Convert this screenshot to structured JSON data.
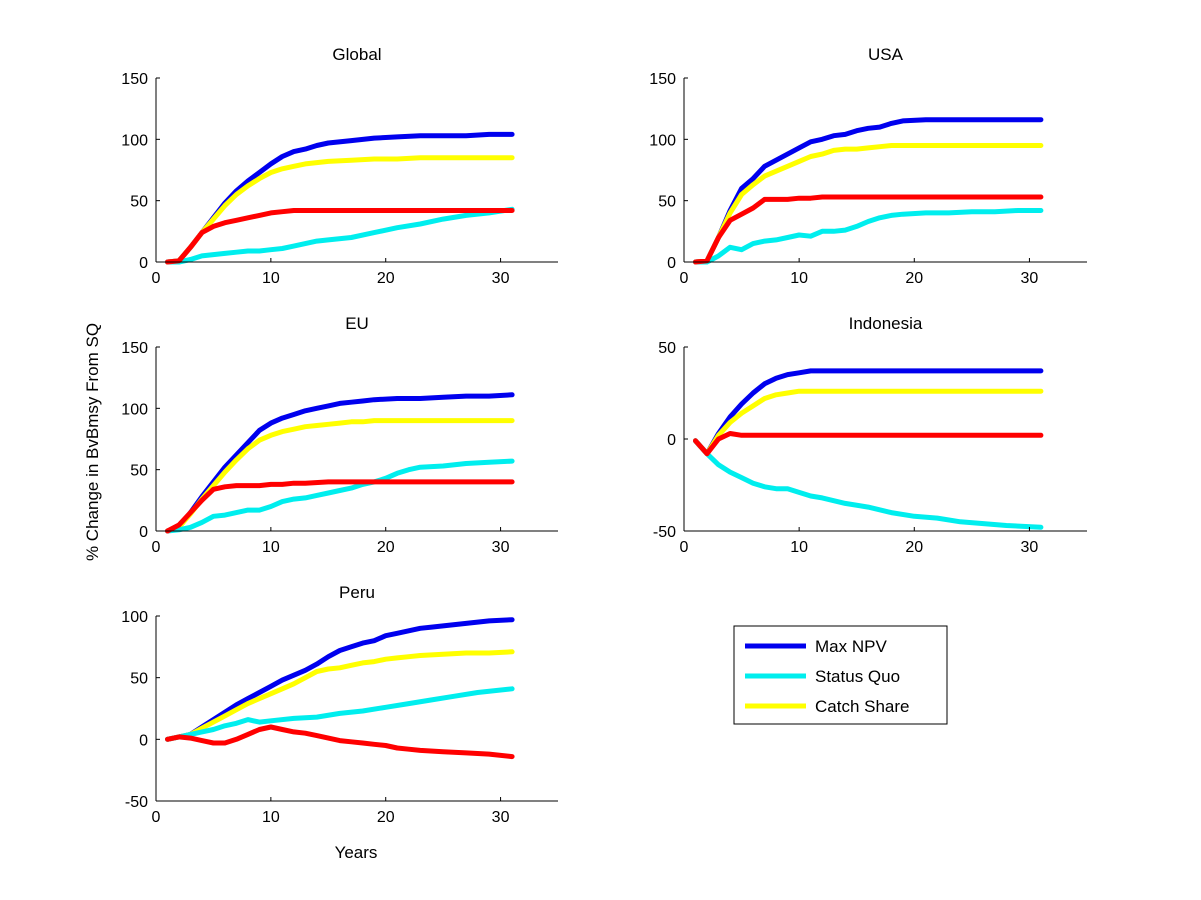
{
  "figure": {
    "ylabel": "% Change in BvBmsy From SQ",
    "xlabel": "Years"
  },
  "legend": {
    "placement": "below-right",
    "entries": [
      {
        "label": "Max NPV",
        "color": "#0000ee"
      },
      {
        "label": "Status Quo",
        "color": "#00eeee"
      },
      {
        "label": "Catch Share",
        "color": "#ffff00"
      }
    ]
  },
  "colors": {
    "max_npv": "#0000ee",
    "status_quo": "#00eeee",
    "catch_share": "#ffff00",
    "fourth_series": "#ff0000"
  },
  "chart_data": [
    {
      "type": "line",
      "title": "Global",
      "xlim": [
        0,
        35
      ],
      "ylim": [
        0,
        150
      ],
      "xticks": [
        0,
        10,
        20,
        30
      ],
      "yticks": [
        0,
        50,
        100,
        150
      ],
      "grid": false,
      "series": [
        {
          "name": "Max NPV",
          "color": "#0000ee",
          "x": [
            1,
            2,
            3,
            4,
            5,
            6,
            7,
            8,
            9,
            10,
            11,
            12,
            13,
            14,
            15,
            17,
            19,
            21,
            23,
            25,
            27,
            29,
            31
          ],
          "y": [
            0,
            1,
            12,
            24,
            36,
            48,
            58,
            66,
            73,
            80,
            86,
            90,
            92,
            95,
            97,
            99,
            101,
            102,
            103,
            103,
            103,
            104,
            104
          ]
        },
        {
          "name": "Catch Share",
          "color": "#ffff00",
          "x": [
            1,
            2,
            3,
            4,
            5,
            6,
            7,
            8,
            9,
            10,
            11,
            12,
            13,
            14,
            15,
            17,
            19,
            21,
            23,
            25,
            27,
            29,
            31
          ],
          "y": [
            0,
            1,
            12,
            24,
            35,
            46,
            55,
            62,
            68,
            73,
            76,
            78,
            80,
            81,
            82,
            83,
            84,
            84,
            85,
            85,
            85,
            85,
            85
          ]
        },
        {
          "name": "Status Quo",
          "color": "#00eeee",
          "x": [
            1,
            2,
            3,
            4,
            5,
            6,
            7,
            8,
            9,
            10,
            11,
            12,
            13,
            14,
            15,
            17,
            19,
            21,
            23,
            25,
            27,
            29,
            31
          ],
          "y": [
            0,
            0,
            2,
            5,
            6,
            7,
            8,
            9,
            9,
            10,
            11,
            13,
            15,
            17,
            18,
            20,
            24,
            28,
            31,
            35,
            38,
            40,
            43
          ]
        },
        {
          "color": "#ff0000",
          "x": [
            1,
            2,
            3,
            4,
            5,
            6,
            7,
            8,
            9,
            10,
            11,
            12,
            13,
            15,
            17,
            19,
            21,
            23,
            25,
            27,
            29,
            31
          ],
          "y": [
            0,
            1,
            12,
            24,
            29,
            32,
            34,
            36,
            38,
            40,
            41,
            42,
            42,
            42,
            42,
            42,
            42,
            42,
            42,
            42,
            42,
            42
          ]
        }
      ]
    },
    {
      "type": "line",
      "title": "USA",
      "xlim": [
        0,
        35
      ],
      "ylim": [
        0,
        150
      ],
      "xticks": [
        0,
        10,
        20,
        30
      ],
      "yticks": [
        0,
        50,
        100,
        150
      ],
      "grid": false,
      "series": [
        {
          "name": "Max NPV",
          "color": "#0000ee",
          "x": [
            1,
            2,
            3,
            4,
            5,
            6,
            7,
            8,
            9,
            10,
            11,
            12,
            13,
            14,
            15,
            16,
            17,
            18,
            19,
            21,
            23,
            25,
            27,
            29,
            31
          ],
          "y": [
            0,
            1,
            20,
            42,
            60,
            68,
            78,
            83,
            88,
            93,
            98,
            100,
            103,
            104,
            107,
            109,
            110,
            113,
            115,
            116,
            116,
            116,
            116,
            116,
            116
          ]
        },
        {
          "name": "Catch Share",
          "color": "#ffff00",
          "x": [
            1,
            2,
            3,
            4,
            5,
            6,
            7,
            8,
            9,
            10,
            11,
            12,
            13,
            14,
            15,
            16,
            17,
            18,
            19,
            21,
            23,
            25,
            27,
            29,
            31
          ],
          "y": [
            0,
            1,
            20,
            40,
            55,
            63,
            70,
            74,
            78,
            82,
            86,
            88,
            91,
            92,
            92,
            93,
            94,
            95,
            95,
            95,
            95,
            95,
            95,
            95,
            95
          ]
        },
        {
          "name": "Status Quo",
          "color": "#00eeee",
          "x": [
            1,
            2,
            3,
            4,
            5,
            6,
            7,
            8,
            9,
            10,
            11,
            12,
            13,
            14,
            15,
            16,
            17,
            18,
            19,
            21,
            23,
            25,
            27,
            29,
            31
          ],
          "y": [
            0,
            0,
            5,
            12,
            10,
            15,
            17,
            18,
            20,
            22,
            21,
            25,
            25,
            26,
            29,
            33,
            36,
            38,
            39,
            40,
            40,
            41,
            41,
            42,
            42
          ]
        },
        {
          "color": "#ff0000",
          "x": [
            1,
            2,
            3,
            4,
            5,
            6,
            7,
            8,
            9,
            10,
            11,
            12,
            13,
            15,
            17,
            19,
            21,
            23,
            25,
            27,
            29,
            31
          ],
          "y": [
            0,
            1,
            20,
            34,
            39,
            44,
            51,
            51,
            51,
            52,
            52,
            53,
            53,
            53,
            53,
            53,
            53,
            53,
            53,
            53,
            53,
            53
          ]
        }
      ]
    },
    {
      "type": "line",
      "title": "EU",
      "xlim": [
        0,
        35
      ],
      "ylim": [
        0,
        150
      ],
      "xticks": [
        0,
        10,
        20,
        30
      ],
      "yticks": [
        0,
        50,
        100,
        150
      ],
      "grid": false,
      "series": [
        {
          "name": "Max NPV",
          "color": "#0000ee",
          "x": [
            1,
            2,
            3,
            4,
            5,
            6,
            7,
            8,
            9,
            10,
            11,
            12,
            13,
            14,
            15,
            16,
            17,
            18,
            19,
            21,
            23,
            25,
            27,
            29,
            31
          ],
          "y": [
            0,
            3,
            15,
            28,
            40,
            52,
            62,
            72,
            82,
            88,
            92,
            95,
            98,
            100,
            102,
            104,
            105,
            106,
            107,
            108,
            108,
            109,
            110,
            110,
            111
          ]
        },
        {
          "name": "Catch Share",
          "color": "#ffff00",
          "x": [
            1,
            2,
            3,
            4,
            5,
            6,
            7,
            8,
            9,
            10,
            11,
            12,
            13,
            14,
            15,
            16,
            17,
            18,
            19,
            21,
            23,
            25,
            27,
            29,
            31
          ],
          "y": [
            0,
            3,
            14,
            26,
            37,
            48,
            58,
            67,
            74,
            78,
            81,
            83,
            85,
            86,
            87,
            88,
            89,
            89,
            90,
            90,
            90,
            90,
            90,
            90,
            90
          ]
        },
        {
          "name": "Status Quo",
          "color": "#00eeee",
          "x": [
            1,
            2,
            3,
            4,
            5,
            6,
            7,
            8,
            9,
            10,
            11,
            12,
            13,
            14,
            15,
            16,
            17,
            18,
            19,
            20,
            21,
            22,
            23,
            25,
            27,
            29,
            31
          ],
          "y": [
            0,
            1,
            3,
            7,
            12,
            13,
            15,
            17,
            17,
            20,
            24,
            26,
            27,
            29,
            31,
            33,
            35,
            38,
            40,
            43,
            47,
            50,
            52,
            53,
            55,
            56,
            57
          ]
        },
        {
          "color": "#ff0000",
          "x": [
            1,
            2,
            3,
            4,
            5,
            6,
            7,
            8,
            9,
            10,
            11,
            12,
            13,
            15,
            17,
            19,
            21,
            23,
            25,
            27,
            29,
            31
          ],
          "y": [
            0,
            5,
            15,
            25,
            34,
            36,
            37,
            37,
            37,
            38,
            38,
            39,
            39,
            40,
            40,
            40,
            40,
            40,
            40,
            40,
            40,
            40
          ]
        }
      ]
    },
    {
      "type": "line",
      "title": "Indonesia",
      "xlim": [
        0,
        35
      ],
      "ylim": [
        -50,
        50
      ],
      "xticks": [
        0,
        10,
        20,
        30
      ],
      "yticks": [
        -50,
        0,
        50
      ],
      "grid": false,
      "series": [
        {
          "name": "Max NPV",
          "color": "#0000ee",
          "x": [
            1,
            2,
            3,
            4,
            5,
            6,
            7,
            8,
            9,
            10,
            11,
            12,
            13,
            15,
            17,
            19,
            21,
            23,
            25,
            27,
            29,
            31
          ],
          "y": [
            -1,
            -8,
            3,
            12,
            19,
            25,
            30,
            33,
            35,
            36,
            37,
            37,
            37,
            37,
            37,
            37,
            37,
            37,
            37,
            37,
            37,
            37
          ]
        },
        {
          "name": "Catch Share",
          "color": "#ffff00",
          "x": [
            1,
            2,
            3,
            4,
            5,
            6,
            7,
            8,
            9,
            10,
            11,
            13,
            15,
            17,
            19,
            21,
            23,
            25,
            27,
            29,
            31
          ],
          "y": [
            -1,
            -8,
            2,
            9,
            14,
            18,
            22,
            24,
            25,
            26,
            26,
            26,
            26,
            26,
            26,
            26,
            26,
            26,
            26,
            26,
            26
          ]
        },
        {
          "name": "Status Quo",
          "color": "#00eeee",
          "x": [
            1,
            2,
            3,
            4,
            5,
            6,
            7,
            8,
            9,
            10,
            11,
            12,
            14,
            16,
            18,
            20,
            22,
            24,
            26,
            28,
            31
          ],
          "y": [
            -1,
            -8,
            -14,
            -18,
            -21,
            -24,
            -26,
            -27,
            -27,
            -29,
            -31,
            -32,
            -35,
            -37,
            -40,
            -42,
            -43,
            -45,
            -46,
            -47,
            -48
          ]
        },
        {
          "color": "#ff0000",
          "x": [
            1,
            2,
            3,
            4,
            5,
            6,
            7,
            9,
            11,
            13,
            15,
            17,
            19,
            21,
            23,
            25,
            27,
            29,
            31
          ],
          "y": [
            -1,
            -8,
            0,
            3,
            2,
            2,
            2,
            2,
            2,
            2,
            2,
            2,
            2,
            2,
            2,
            2,
            2,
            2,
            2
          ]
        }
      ]
    },
    {
      "type": "line",
      "title": "Peru",
      "xlim": [
        0,
        35
      ],
      "ylim": [
        -50,
        100
      ],
      "xticks": [
        0,
        10,
        20,
        30
      ],
      "yticks": [
        -50,
        0,
        50,
        100
      ],
      "grid": false,
      "series": [
        {
          "name": "Max NPV",
          "color": "#0000ee",
          "x": [
            1,
            2,
            3,
            4,
            5,
            6,
            7,
            8,
            9,
            10,
            11,
            12,
            13,
            14,
            15,
            16,
            17,
            18,
            19,
            20,
            21,
            22,
            23,
            24,
            25,
            27,
            29,
            31
          ],
          "y": [
            0,
            2,
            4,
            10,
            16,
            22,
            28,
            33,
            38,
            43,
            48,
            52,
            56,
            61,
            67,
            72,
            75,
            78,
            80,
            84,
            86,
            88,
            90,
            91,
            92,
            94,
            96,
            97
          ]
        },
        {
          "name": "Catch Share",
          "color": "#ffff00",
          "x": [
            1,
            2,
            3,
            4,
            5,
            6,
            7,
            8,
            9,
            10,
            11,
            12,
            13,
            14,
            15,
            16,
            17,
            18,
            19,
            20,
            21,
            22,
            23,
            25,
            27,
            29,
            31
          ],
          "y": [
            0,
            2,
            4,
            9,
            14,
            19,
            24,
            29,
            33,
            37,
            41,
            45,
            50,
            55,
            57,
            58,
            60,
            62,
            63,
            65,
            66,
            67,
            68,
            69,
            70,
            70,
            71
          ]
        },
        {
          "name": "Status Quo",
          "color": "#00eeee",
          "x": [
            1,
            2,
            3,
            4,
            5,
            6,
            7,
            8,
            9,
            10,
            12,
            14,
            16,
            18,
            20,
            22,
            24,
            26,
            28,
            31
          ],
          "y": [
            0,
            2,
            4,
            6,
            8,
            11,
            13,
            16,
            14,
            15,
            17,
            18,
            21,
            23,
            26,
            29,
            32,
            35,
            38,
            41
          ]
        },
        {
          "color": "#ff0000",
          "x": [
            1,
            2,
            3,
            4,
            5,
            6,
            7,
            8,
            9,
            10,
            11,
            12,
            13,
            14,
            15,
            16,
            17,
            18,
            19,
            20,
            21,
            22,
            23,
            25,
            27,
            29,
            31
          ],
          "y": [
            0,
            2,
            1,
            -1,
            -3,
            -3,
            0,
            4,
            8,
            10,
            8,
            6,
            5,
            3,
            1,
            -1,
            -2,
            -3,
            -4,
            -5,
            -7,
            -8,
            -9,
            -10,
            -11,
            -12,
            -14
          ]
        }
      ]
    }
  ]
}
